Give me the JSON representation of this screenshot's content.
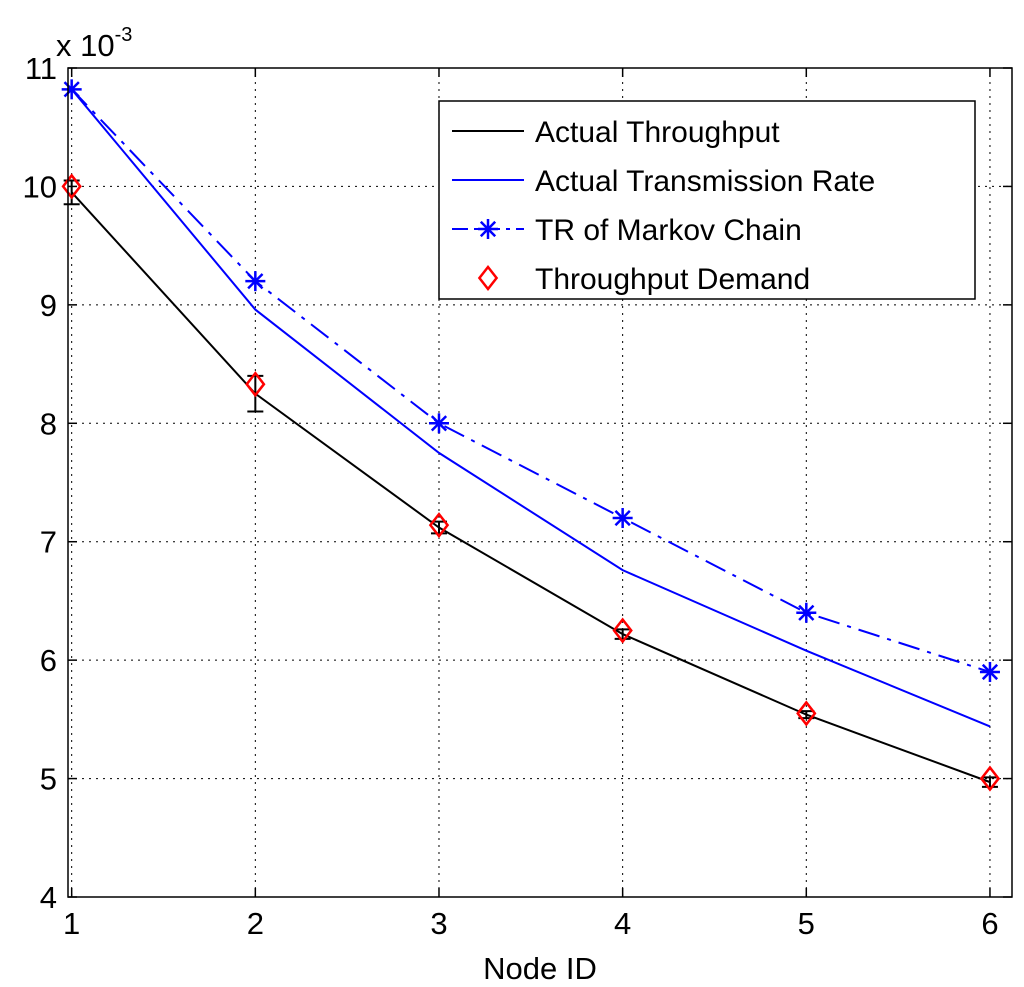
{
  "chart_data": {
    "type": "line",
    "title": "",
    "xlabel": "Node ID",
    "ylabel": "",
    "x": [
      1,
      2,
      3,
      4,
      5,
      6
    ],
    "xlim": [
      0.98,
      6.12
    ],
    "ylim": [
      4,
      11
    ],
    "xticks": [
      "1",
      "2",
      "3",
      "4",
      "5",
      "6"
    ],
    "yticks": [
      "4",
      "5",
      "6",
      "7",
      "8",
      "9",
      "10",
      "11"
    ],
    "y_scale_label": "x 10",
    "y_scale_exponent": "-3",
    "grid": true,
    "legend_position": "top-right",
    "series": [
      {
        "name": "Actual Throughput",
        "color": "#000000",
        "line": "solid",
        "marker": "none",
        "values": [
          9.95,
          8.25,
          7.12,
          6.22,
          5.54,
          4.97
        ],
        "error_bars": [
          0.1,
          0.15,
          0.05,
          0.04,
          0.03,
          0.04
        ]
      },
      {
        "name": "Actual Transmission Rate",
        "color": "#0000ff",
        "line": "solid",
        "marker": "none",
        "values": [
          10.82,
          8.96,
          7.75,
          6.76,
          6.08,
          5.44
        ]
      },
      {
        "name": "TR of Markov Chain",
        "color": "#0000ff",
        "line": "dashdot",
        "marker": "asterisk",
        "values": [
          10.82,
          9.2,
          8.0,
          7.2,
          6.4,
          5.9
        ]
      },
      {
        "name": "Throughput Demand",
        "color": "#ff0000",
        "line": "none",
        "marker": "diamond",
        "values": [
          10.0,
          8.33,
          7.14,
          6.25,
          5.55,
          5.0
        ]
      }
    ]
  }
}
